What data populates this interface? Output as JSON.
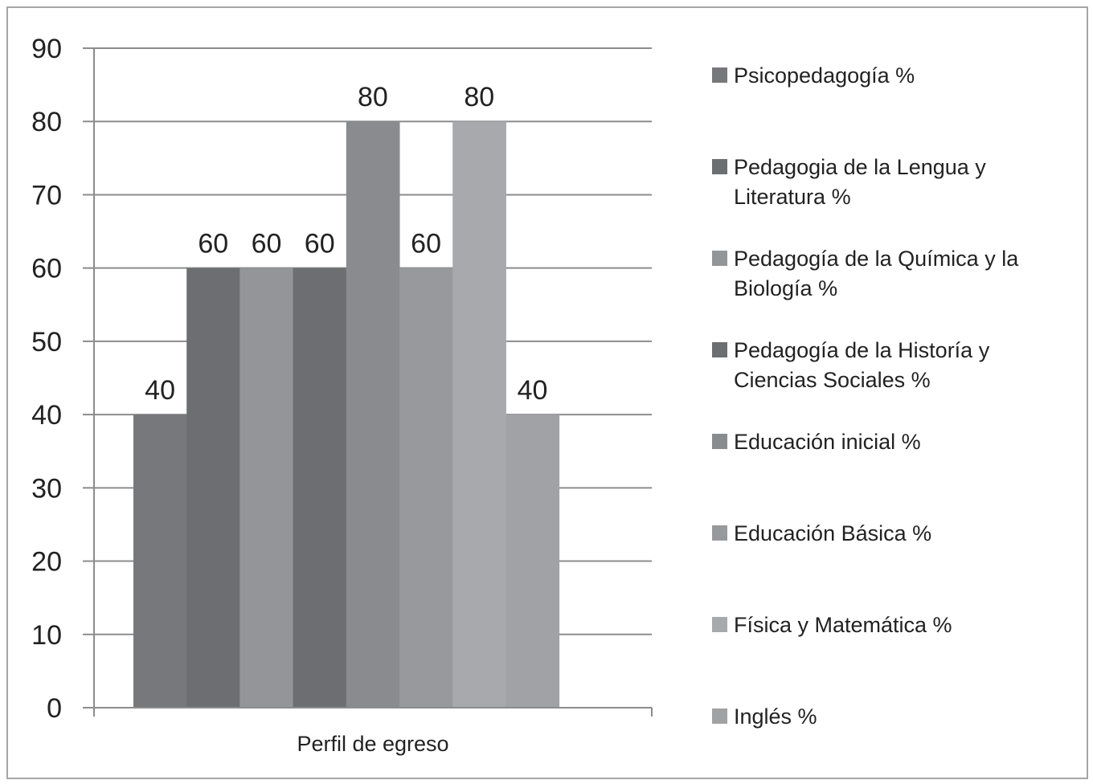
{
  "chart_data": {
    "type": "bar",
    "title": "",
    "xlabel": "Perfil de egreso",
    "ylabel": "",
    "ylim": [
      0,
      90
    ],
    "yticks": [
      0,
      10,
      20,
      30,
      40,
      50,
      60,
      70,
      80,
      90
    ],
    "grid": true,
    "legend_position": "right",
    "categories": [
      "Perfil de egreso"
    ],
    "series": [
      {
        "name": "Psicopedagogía %",
        "values": [
          40
        ],
        "color": "#77787b"
      },
      {
        "name": "Pedagogia de la Lengua y Literatura %",
        "values": [
          60
        ],
        "color": "#6d6e71"
      },
      {
        "name": "Pedagogía de la Química y la Biología %",
        "values": [
          60
        ],
        "color": "#939598"
      },
      {
        "name": "Pedagogía de la Historía y Ciencias Sociales %",
        "values": [
          60
        ],
        "color": "#6d6e71"
      },
      {
        "name": "Educación inicial  %",
        "values": [
          80
        ],
        "color": "#8a8b8e"
      },
      {
        "name": "Educación Básica %",
        "values": [
          60
        ],
        "color": "#98999c"
      },
      {
        "name": "Física y Matemática %",
        "values": [
          80
        ],
        "color": "#a7a9ac"
      },
      {
        "name": "Inglés  %",
        "values": [
          40
        ],
        "color": "#a0a2a5"
      }
    ],
    "legend_lines": [
      [
        "Psicopedagogía %"
      ],
      [
        "Pedagogia de la Lengua y",
        "Literatura %"
      ],
      [
        "Pedagogía de la Química y la",
        "Biología %"
      ],
      [
        "Pedagogía de la Historía y",
        "Ciencias Sociales %"
      ],
      [
        "Educación inicial  %"
      ],
      [
        "Educación Básica %"
      ],
      [
        "Física y Matemática %"
      ],
      [
        "Inglés  %"
      ]
    ]
  }
}
